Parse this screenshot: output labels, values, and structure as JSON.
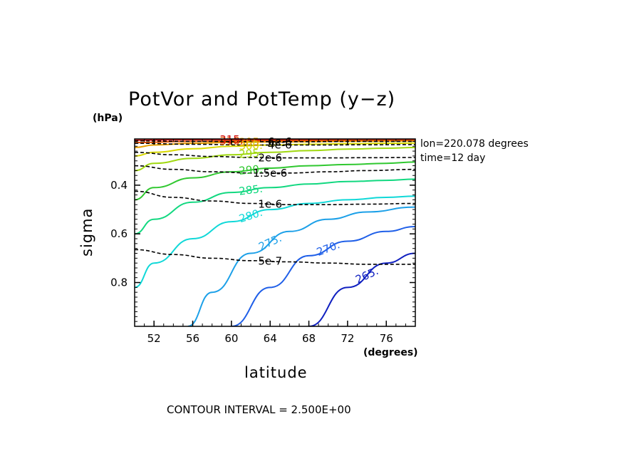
{
  "title": "PotVor and PotTemp (y−z)",
  "y_unit": "(hPa)",
  "x_unit": "(degrees)",
  "info": [
    "lon=220.078 degrees",
    "time=12 day"
  ],
  "footnote": "CONTOUR INTERVAL = 2.500E+00",
  "chart_data": {
    "type": "line",
    "xlabel": "latitude",
    "ylabel": "sigma",
    "xlim": [
      50,
      79
    ],
    "ylim": [
      0.21,
      0.98
    ],
    "y_inverted": true,
    "x_ticks": [
      52,
      56,
      60,
      64,
      68,
      72,
      76
    ],
    "y_ticks": [
      0.4,
      0.6,
      0.8
    ],
    "potential_temperature_contours": [
      {
        "value": 265,
        "label": "265.",
        "color": "#1020c0",
        "x": [
          68,
          72,
          76,
          79
        ],
        "y": [
          0.98,
          0.82,
          0.72,
          0.68
        ]
      },
      {
        "value": 270,
        "label": "270.",
        "color": "#1f5fe8",
        "x": [
          60,
          64,
          68,
          72,
          76,
          79
        ],
        "y": [
          0.98,
          0.82,
          0.69,
          0.63,
          0.59,
          0.57
        ]
      },
      {
        "value": 275,
        "label": "275.",
        "color": "#1ca0e8",
        "x": [
          55.5,
          58,
          62,
          66,
          70,
          74,
          79
        ],
        "y": [
          0.98,
          0.84,
          0.68,
          0.59,
          0.54,
          0.51,
          0.49
        ]
      },
      {
        "value": 280,
        "label": "280.",
        "color": "#10d8d8",
        "x": [
          50,
          52,
          56,
          60,
          64,
          68,
          72,
          76,
          79
        ],
        "y": [
          0.82,
          0.72,
          0.62,
          0.55,
          0.5,
          0.475,
          0.46,
          0.45,
          0.445
        ]
      },
      {
        "value": 285,
        "label": "285.",
        "color": "#12d880",
        "x": [
          50,
          52,
          56,
          60,
          64,
          68,
          72,
          76,
          79
        ],
        "y": [
          0.6,
          0.54,
          0.47,
          0.43,
          0.41,
          0.395,
          0.385,
          0.38,
          0.375
        ]
      },
      {
        "value": 290,
        "label": "290.",
        "color": "#30c830",
        "x": [
          50,
          52,
          56,
          60,
          64,
          68,
          72,
          76,
          79
        ],
        "y": [
          0.46,
          0.41,
          0.37,
          0.345,
          0.33,
          0.32,
          0.315,
          0.31,
          0.305
        ]
      },
      {
        "value": 295,
        "label": "295.",
        "color": "#a0d810",
        "x": [
          50,
          52,
          56,
          60,
          64,
          68,
          72,
          76,
          79
        ],
        "y": [
          0.34,
          0.31,
          0.29,
          0.275,
          0.265,
          0.258,
          0.252,
          0.248,
          0.245
        ]
      },
      {
        "value": 300,
        "label": "300.",
        "color": "#d8d800",
        "x": [
          50,
          52,
          56,
          60,
          64,
          68,
          72,
          76,
          79
        ],
        "y": [
          0.28,
          0.265,
          0.25,
          0.24,
          0.235,
          0.232,
          0.23,
          0.228,
          0.227
        ]
      },
      {
        "value": 305,
        "label": "305.",
        "color": "#e8a000",
        "x": [
          50,
          52,
          56,
          60,
          64,
          68,
          72,
          76,
          79
        ],
        "y": [
          0.245,
          0.235,
          0.228,
          0.224,
          0.222,
          0.221,
          0.22,
          0.219,
          0.218
        ]
      },
      {
        "value": 310,
        "label": "310.",
        "color": "#e05000",
        "x": [
          50,
          56,
          64,
          72,
          79
        ],
        "y": [
          0.225,
          0.22,
          0.217,
          0.215,
          0.214
        ]
      },
      {
        "value": 315,
        "label": "315.",
        "color": "#d01010",
        "x": [
          50,
          56,
          64,
          72,
          79
        ],
        "y": [
          0.215,
          0.213,
          0.212,
          0.211,
          0.211
        ]
      }
    ],
    "potential_vorticity_contours": [
      {
        "value": 5e-07,
        "label": "5e-7",
        "x": [
          50,
          54,
          58,
          62,
          66,
          70,
          74,
          79
        ],
        "y": [
          0.665,
          0.685,
          0.7,
          0.71,
          0.715,
          0.72,
          0.725,
          0.725
        ]
      },
      {
        "value": 1e-06,
        "label": "1e-6",
        "x": [
          50,
          54,
          58,
          62,
          66,
          70,
          74,
          79
        ],
        "y": [
          0.425,
          0.45,
          0.465,
          0.475,
          0.48,
          0.48,
          0.478,
          0.475
        ]
      },
      {
        "value": 1.5e-06,
        "label": "1.5e-6",
        "x": [
          50,
          54,
          58,
          62,
          66,
          70,
          74,
          79
        ],
        "y": [
          0.32,
          0.335,
          0.345,
          0.35,
          0.35,
          0.345,
          0.34,
          0.335
        ]
      },
      {
        "value": 2e-06,
        "label": "2e-6",
        "x": [
          50,
          54,
          58,
          62,
          66,
          70,
          74,
          79
        ],
        "y": [
          0.265,
          0.275,
          0.282,
          0.286,
          0.288,
          0.288,
          0.287,
          0.286
        ]
      },
      {
        "value": 4e-06,
        "label": "4e-6",
        "x": [
          50,
          56,
          62,
          68,
          74,
          79
        ],
        "y": [
          0.228,
          0.232,
          0.235,
          0.235,
          0.234,
          0.233
        ]
      },
      {
        "value": 6e-06,
        "label": "6e-6",
        "x": [
          50,
          56,
          62,
          68,
          74,
          79
        ],
        "y": [
          0.218,
          0.22,
          0.221,
          0.221,
          0.22,
          0.22
        ]
      }
    ]
  }
}
